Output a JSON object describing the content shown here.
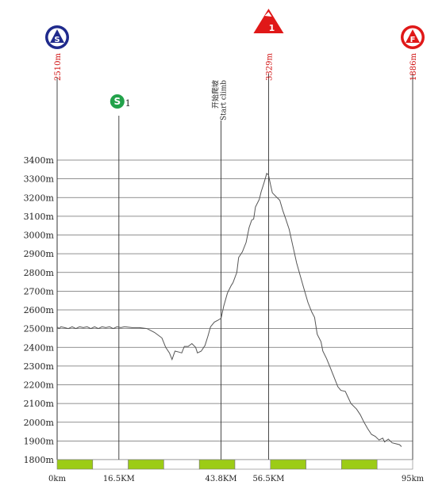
{
  "chart_data": {
    "type": "line",
    "title": "",
    "xlabel": "",
    "ylabel": "",
    "xlim": [
      0,
      95
    ],
    "ylim": [
      1800,
      3400
    ],
    "y_ticks": [
      "1800m",
      "1900m",
      "2000m",
      "2100m",
      "2200m",
      "2300m",
      "2400m",
      "2500m",
      "2600m",
      "2700m",
      "2800m",
      "2900m",
      "3000m",
      "3100m",
      "3200m",
      "3300m",
      "3400m"
    ],
    "x_ticks": [
      {
        "x": 0,
        "label": "0km"
      },
      {
        "x": 16.5,
        "label": "16.5KM"
      },
      {
        "x": 43.8,
        "label": "43.8KM"
      },
      {
        "x": 56.5,
        "label": "56.5KM"
      },
      {
        "x": 95,
        "label": "95km"
      }
    ],
    "grid": true,
    "series": [
      {
        "values": [
          [
            0,
            2510
          ],
          [
            0.5,
            2500
          ],
          [
            1,
            2510
          ],
          [
            2,
            2505
          ],
          [
            3,
            2500
          ],
          [
            4,
            2510
          ],
          [
            5,
            2500
          ],
          [
            6,
            2510
          ],
          [
            7,
            2505
          ],
          [
            8,
            2510
          ],
          [
            9,
            2500
          ],
          [
            10,
            2510
          ],
          [
            11,
            2500
          ],
          [
            12,
            2510
          ],
          [
            13,
            2505
          ],
          [
            14,
            2510
          ],
          [
            15,
            2500
          ],
          [
            16,
            2510
          ],
          [
            17,
            2505
          ],
          [
            18,
            2510
          ],
          [
            20,
            2505
          ],
          [
            22,
            2505
          ],
          [
            24,
            2500
          ],
          [
            26,
            2480
          ],
          [
            27,
            2465
          ],
          [
            28,
            2450
          ],
          [
            29,
            2400
          ],
          [
            30,
            2370
          ],
          [
            30.7,
            2335
          ],
          [
            31.5,
            2380
          ],
          [
            32.5,
            2375
          ],
          [
            33.3,
            2370
          ],
          [
            34,
            2405
          ],
          [
            35,
            2405
          ],
          [
            36,
            2420
          ],
          [
            37,
            2400
          ],
          [
            37.5,
            2370
          ],
          [
            38.5,
            2380
          ],
          [
            39.5,
            2410
          ],
          [
            40.3,
            2460
          ],
          [
            41,
            2510
          ],
          [
            42,
            2535
          ],
          [
            43,
            2545
          ],
          [
            43.8,
            2555
          ],
          [
            44.5,
            2620
          ],
          [
            45.5,
            2690
          ],
          [
            46.5,
            2730
          ],
          [
            47,
            2745
          ],
          [
            48,
            2800
          ],
          [
            48.5,
            2880
          ],
          [
            49.5,
            2910
          ],
          [
            50.5,
            2960
          ],
          [
            51.3,
            3040
          ],
          [
            52,
            3080
          ],
          [
            52.5,
            3085
          ],
          [
            53,
            3150
          ],
          [
            54,
            3190
          ],
          [
            54.5,
            3230
          ],
          [
            55.3,
            3280
          ],
          [
            56,
            3329
          ],
          [
            56.5,
            3320
          ],
          [
            57,
            3270
          ],
          [
            57.5,
            3225
          ],
          [
            58.5,
            3205
          ],
          [
            59.5,
            3185
          ],
          [
            60.3,
            3130
          ],
          [
            61,
            3090
          ],
          [
            62,
            3030
          ],
          [
            63,
            2940
          ],
          [
            64,
            2850
          ],
          [
            65,
            2780
          ],
          [
            66,
            2710
          ],
          [
            67,
            2640
          ],
          [
            68,
            2590
          ],
          [
            68.8,
            2560
          ],
          [
            69.5,
            2470
          ],
          [
            70.5,
            2430
          ],
          [
            71,
            2380
          ],
          [
            72,
            2340
          ],
          [
            73,
            2290
          ],
          [
            74,
            2240
          ],
          [
            75,
            2190
          ],
          [
            75.8,
            2170
          ],
          [
            77,
            2165
          ],
          [
            77.8,
            2130
          ],
          [
            78.5,
            2100
          ],
          [
            80,
            2070
          ],
          [
            81,
            2040
          ],
          [
            82,
            2000
          ],
          [
            83,
            1965
          ],
          [
            84,
            1935
          ],
          [
            85,
            1925
          ],
          [
            86,
            1905
          ],
          [
            87,
            1915
          ],
          [
            87.5,
            1895
          ],
          [
            88.5,
            1910
          ],
          [
            89.5,
            1890
          ],
          [
            90.5,
            1885
          ],
          [
            91.5,
            1880
          ],
          [
            92,
            1870
          ]
        ]
      }
    ],
    "markers": [
      {
        "type": "start",
        "x": 0,
        "symbol": "S",
        "color": "#1f2a8c",
        "altitude": "2510m"
      },
      {
        "type": "sprint",
        "x": 16.5,
        "symbol": "S",
        "sub": "1",
        "color": "#22a24a"
      },
      {
        "type": "climb-start",
        "x": 43.8,
        "text_cn": "开始爬坡",
        "text_en": "Start climb"
      },
      {
        "type": "summit",
        "x": 56.5,
        "symbol": "1",
        "color": "#e01818",
        "altitude": "3329m"
      },
      {
        "type": "finish",
        "x": 95,
        "symbol": "F",
        "color": "#e01818",
        "altitude": "1886m"
      }
    ],
    "bar_colors": [
      "#9ccc16",
      "#ffffff"
    ]
  }
}
